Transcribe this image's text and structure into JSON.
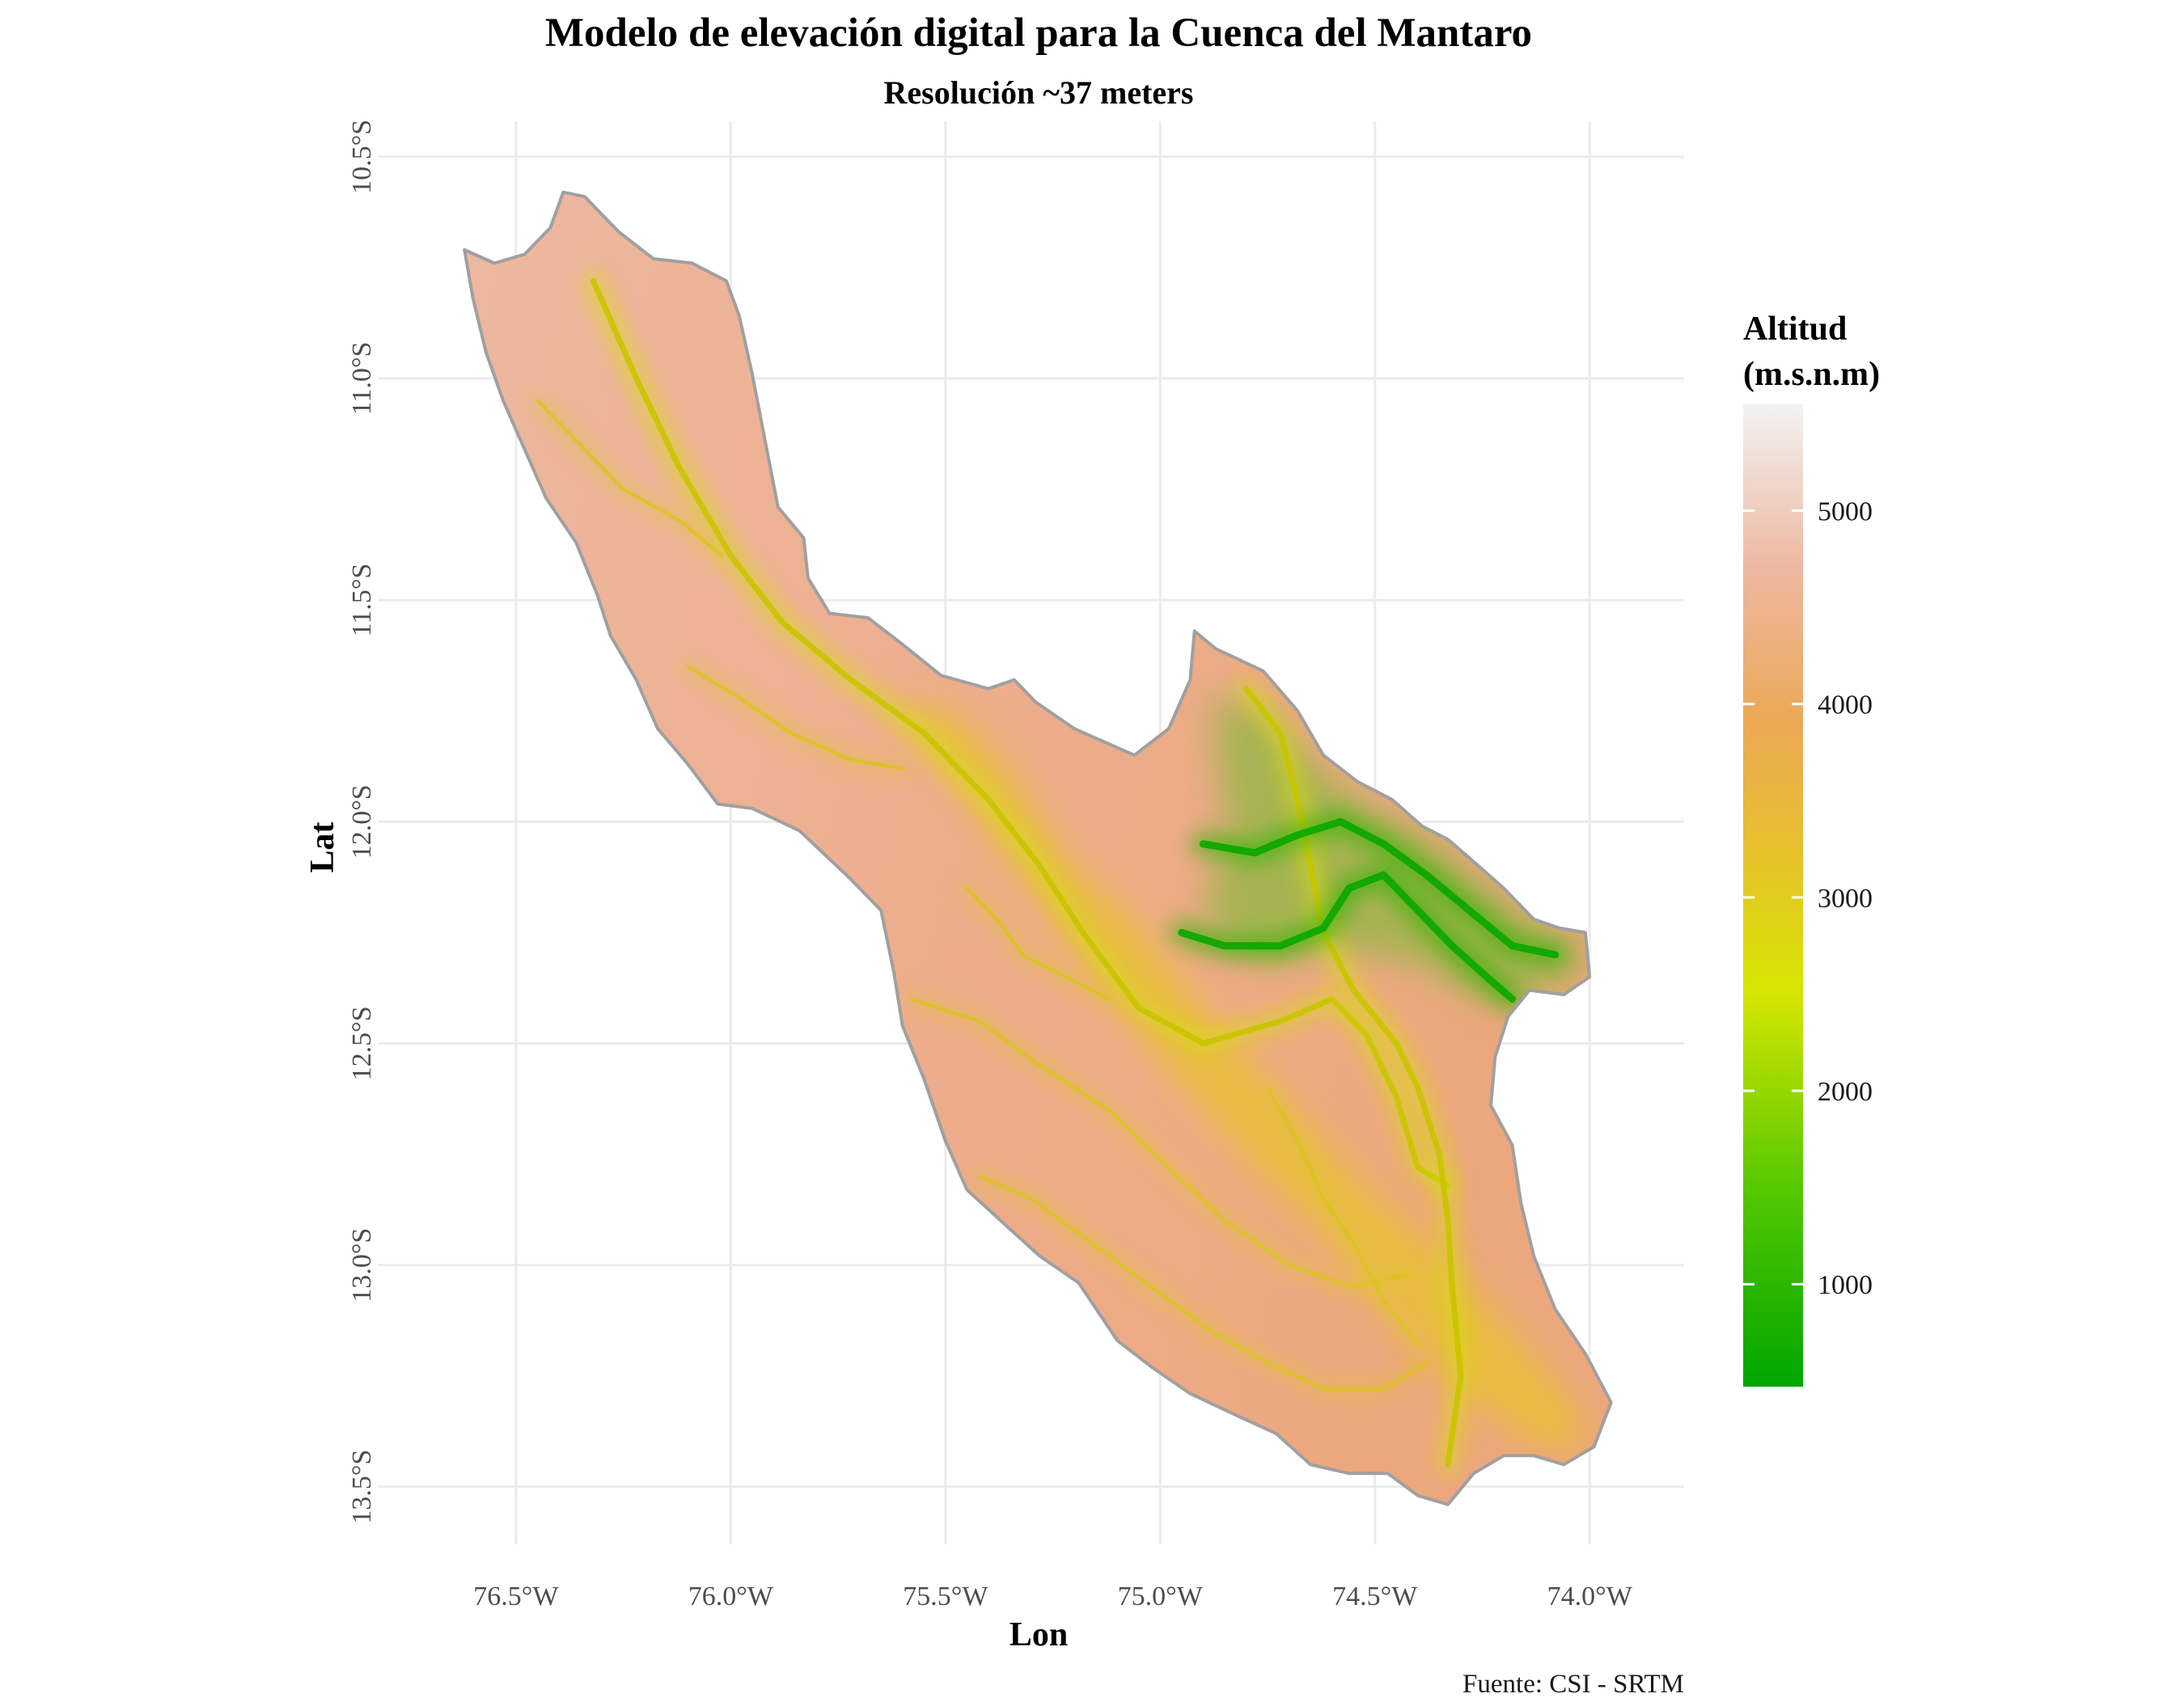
{
  "map": {
    "title": "Modelo de elevación digital para la Cuenca del Mantaro",
    "subtitle": "Resolución ~37 meters",
    "caption": "Fuente: CSI - SRTM",
    "x_axis": {
      "title": "Lon",
      "range": [
        -76.82,
        -73.78
      ],
      "ticks": [
        {
          "value": -76.5,
          "label": "76.5°W"
        },
        {
          "value": -76.0,
          "label": "76.0°W"
        },
        {
          "value": -75.5,
          "label": "75.5°W"
        },
        {
          "value": -75.0,
          "label": "75.0°W"
        },
        {
          "value": -74.5,
          "label": "74.5°W"
        },
        {
          "value": -74.0,
          "label": "74.0°W"
        }
      ]
    },
    "y_axis": {
      "title": "Lat",
      "range": [
        -13.63,
        -10.42
      ],
      "ticks": [
        {
          "value": -10.5,
          "label": "10.5°S"
        },
        {
          "value": -11.0,
          "label": "11.0°S"
        },
        {
          "value": -11.5,
          "label": "11.5°S"
        },
        {
          "value": -12.0,
          "label": "12.0°S"
        },
        {
          "value": -12.5,
          "label": "12.5°S"
        },
        {
          "value": -13.0,
          "label": "13.0°S"
        },
        {
          "value": -13.5,
          "label": "13.5°S"
        }
      ]
    },
    "grid": true,
    "legend": {
      "title_line1": "Altitud",
      "title_line2": "(m.s.n.m)",
      "placement": "right",
      "range": [
        470,
        5550
      ],
      "ticks": [
        {
          "value": 5000,
          "label": "5000"
        },
        {
          "value": 4000,
          "label": "4000"
        },
        {
          "value": 3000,
          "label": "3000"
        },
        {
          "value": 2000,
          "label": "2000"
        },
        {
          "value": 1000,
          "label": "1000"
        }
      ],
      "color_stops": [
        {
          "value": 470,
          "color": "#00a600"
        },
        {
          "value": 1500,
          "color": "#56c800"
        },
        {
          "value": 2500,
          "color": "#d6e600"
        },
        {
          "value": 3200,
          "color": "#e6c22a"
        },
        {
          "value": 3900,
          "color": "#eca855"
        },
        {
          "value": 4700,
          "color": "#edb8a1"
        },
        {
          "value": 5550,
          "color": "#f2f2f2"
        }
      ]
    },
    "colors": {
      "boundary": "#a0a0a0",
      "grid": "#ebebeb",
      "highland": "#edae8e",
      "valley": "#e6c22a",
      "lowland": "#00a600"
    },
    "basin_outline": [
      [
        -76.62,
        -10.71
      ],
      [
        -76.55,
        -10.74
      ],
      [
        -76.48,
        -10.72
      ],
      [
        -76.42,
        -10.66
      ],
      [
        -76.39,
        -10.58
      ],
      [
        -76.34,
        -10.59
      ],
      [
        -76.26,
        -10.67
      ],
      [
        -76.18,
        -10.73
      ],
      [
        -76.09,
        -10.74
      ],
      [
        -76.01,
        -10.78
      ],
      [
        -75.98,
        -10.86
      ],
      [
        -75.95,
        -10.99
      ],
      [
        -75.92,
        -11.14
      ],
      [
        -75.89,
        -11.29
      ],
      [
        -75.83,
        -11.36
      ],
      [
        -75.82,
        -11.45
      ],
      [
        -75.77,
        -11.53
      ],
      [
        -75.68,
        -11.54
      ],
      [
        -75.6,
        -11.6
      ],
      [
        -75.51,
        -11.67
      ],
      [
        -75.4,
        -11.7
      ],
      [
        -75.34,
        -11.68
      ],
      [
        -75.29,
        -11.73
      ],
      [
        -75.2,
        -11.79
      ],
      [
        -75.06,
        -11.85
      ],
      [
        -74.98,
        -11.79
      ],
      [
        -74.93,
        -11.68
      ],
      [
        -74.92,
        -11.57
      ],
      [
        -74.87,
        -11.61
      ],
      [
        -74.76,
        -11.66
      ],
      [
        -74.68,
        -11.75
      ],
      [
        -74.62,
        -11.85
      ],
      [
        -74.54,
        -11.91
      ],
      [
        -74.46,
        -11.95
      ],
      [
        -74.39,
        -12.01
      ],
      [
        -74.33,
        -12.04
      ],
      [
        -74.27,
        -12.09
      ],
      [
        -74.2,
        -12.15
      ],
      [
        -74.13,
        -12.22
      ],
      [
        -74.07,
        -12.24
      ],
      [
        -74.01,
        -12.25
      ],
      [
        -74.0,
        -12.35
      ],
      [
        -74.06,
        -12.39
      ],
      [
        -74.14,
        -12.38
      ],
      [
        -74.19,
        -12.44
      ],
      [
        -74.22,
        -12.53
      ],
      [
        -74.23,
        -12.64
      ],
      [
        -74.18,
        -12.73
      ],
      [
        -74.16,
        -12.86
      ],
      [
        -74.13,
        -12.98
      ],
      [
        -74.08,
        -13.1
      ],
      [
        -74.01,
        -13.2
      ],
      [
        -73.95,
        -13.31
      ],
      [
        -73.99,
        -13.41
      ],
      [
        -74.06,
        -13.45
      ],
      [
        -74.13,
        -13.43
      ],
      [
        -74.2,
        -13.43
      ],
      [
        -74.27,
        -13.47
      ],
      [
        -74.33,
        -13.54
      ],
      [
        -74.4,
        -13.52
      ],
      [
        -74.47,
        -13.47
      ],
      [
        -74.56,
        -13.47
      ],
      [
        -74.65,
        -13.45
      ],
      [
        -74.73,
        -13.38
      ],
      [
        -74.82,
        -13.34
      ],
      [
        -74.93,
        -13.29
      ],
      [
        -75.02,
        -13.23
      ],
      [
        -75.1,
        -13.17
      ],
      [
        -75.19,
        -13.04
      ],
      [
        -75.28,
        -12.98
      ],
      [
        -75.36,
        -12.91
      ],
      [
        -75.45,
        -12.83
      ],
      [
        -75.5,
        -12.72
      ],
      [
        -75.55,
        -12.58
      ],
      [
        -75.6,
        -12.46
      ],
      [
        -75.62,
        -12.34
      ],
      [
        -75.65,
        -12.2
      ],
      [
        -75.72,
        -12.13
      ],
      [
        -75.84,
        -12.02
      ],
      [
        -75.95,
        -11.97
      ],
      [
        -76.03,
        -11.96
      ],
      [
        -76.1,
        -11.87
      ],
      [
        -76.17,
        -11.79
      ],
      [
        -76.22,
        -11.68
      ],
      [
        -76.28,
        -11.58
      ],
      [
        -76.31,
        -11.49
      ],
      [
        -76.36,
        -11.37
      ],
      [
        -76.43,
        -11.27
      ],
      [
        -76.48,
        -11.16
      ],
      [
        -76.53,
        -11.05
      ],
      [
        -76.57,
        -10.94
      ],
      [
        -76.6,
        -10.82
      ]
    ],
    "valley_zone": [
      [
        -75.62,
        -11.72
      ],
      [
        -75.48,
        -11.75
      ],
      [
        -75.35,
        -11.88
      ],
      [
        -75.22,
        -12.08
      ],
      [
        -75.06,
        -12.22
      ],
      [
        -74.9,
        -12.42
      ],
      [
        -74.72,
        -12.62
      ],
      [
        -74.52,
        -12.82
      ],
      [
        -74.32,
        -13.0
      ],
      [
        -74.18,
        -13.15
      ],
      [
        -74.05,
        -13.3
      ],
      [
        -74.0,
        -13.4
      ],
      [
        -74.1,
        -13.42
      ],
      [
        -74.28,
        -13.3
      ],
      [
        -74.45,
        -13.12
      ],
      [
        -74.6,
        -12.95
      ],
      [
        -74.8,
        -12.76
      ],
      [
        -74.98,
        -12.56
      ],
      [
        -75.14,
        -12.36
      ],
      [
        -75.3,
        -12.15
      ],
      [
        -75.45,
        -11.95
      ],
      [
        -75.58,
        -11.8
      ]
    ],
    "green_zone": [
      [
        -74.88,
        -11.72
      ],
      [
        -74.76,
        -11.74
      ],
      [
        -74.64,
        -11.87
      ],
      [
        -74.52,
        -11.96
      ],
      [
        -74.38,
        -12.03
      ],
      [
        -74.25,
        -12.13
      ],
      [
        -74.12,
        -12.23
      ],
      [
        -74.02,
        -12.27
      ],
      [
        -74.01,
        -12.35
      ],
      [
        -74.12,
        -12.38
      ],
      [
        -74.22,
        -12.42
      ],
      [
        -74.3,
        -12.38
      ],
      [
        -74.38,
        -12.33
      ],
      [
        -74.5,
        -12.3
      ],
      [
        -74.62,
        -12.29
      ],
      [
        -74.76,
        -12.32
      ],
      [
        -74.86,
        -12.28
      ],
      [
        -74.9,
        -12.16
      ],
      [
        -74.84,
        -12.05
      ],
      [
        -74.86,
        -11.92
      ]
    ],
    "rivers": [
      {
        "name": "",
        "kind": "main",
        "coords": [
          [
            -76.32,
            -10.78
          ],
          [
            -76.22,
            -11.0
          ],
          [
            -76.12,
            -11.2
          ],
          [
            -76.0,
            -11.4
          ],
          [
            -75.88,
            -11.55
          ],
          [
            -75.72,
            -11.68
          ],
          [
            -75.55,
            -11.8
          ],
          [
            -75.4,
            -11.95
          ],
          [
            -75.28,
            -12.1
          ],
          [
            -75.18,
            -12.25
          ],
          [
            -75.05,
            -12.42
          ],
          [
            -74.9,
            -12.5
          ],
          [
            -74.72,
            -12.45
          ],
          [
            -74.6,
            -12.4
          ],
          [
            -74.52,
            -12.48
          ],
          [
            -74.45,
            -12.62
          ],
          [
            -74.4,
            -12.78
          ],
          [
            -74.33,
            -12.82
          ]
        ]
      },
      {
        "name": "",
        "kind": "main",
        "coords": [
          [
            -74.33,
            -13.45
          ],
          [
            -74.3,
            -13.25
          ],
          [
            -74.32,
            -13.05
          ],
          [
            -74.33,
            -12.9
          ],
          [
            -74.35,
            -12.75
          ],
          [
            -74.4,
            -12.6
          ],
          [
            -74.45,
            -12.5
          ],
          [
            -74.55,
            -12.38
          ],
          [
            -74.62,
            -12.25
          ],
          [
            -74.65,
            -12.1
          ],
          [
            -74.68,
            -11.95
          ],
          [
            -74.72,
            -11.8
          ],
          [
            -74.8,
            -11.7
          ]
        ]
      },
      {
        "name": "",
        "kind": "green",
        "coords": [
          [
            -74.9,
            -12.05
          ],
          [
            -74.78,
            -12.07
          ],
          [
            -74.68,
            -12.03
          ],
          [
            -74.58,
            -12.0
          ],
          [
            -74.48,
            -12.05
          ],
          [
            -74.38,
            -12.12
          ],
          [
            -74.28,
            -12.2
          ],
          [
            -74.18,
            -12.28
          ],
          [
            -74.08,
            -12.3
          ]
        ]
      },
      {
        "name": "",
        "kind": "green",
        "coords": [
          [
            -74.95,
            -12.25
          ],
          [
            -74.85,
            -12.28
          ],
          [
            -74.72,
            -12.28
          ],
          [
            -74.62,
            -12.24
          ],
          [
            -74.56,
            -12.15
          ],
          [
            -74.48,
            -12.12
          ],
          [
            -74.4,
            -12.2
          ],
          [
            -74.32,
            -12.28
          ],
          [
            -74.24,
            -12.35
          ],
          [
            -74.18,
            -12.4
          ]
        ]
      },
      {
        "name": "",
        "kind": "trib",
        "coords": [
          [
            -75.58,
            -12.4
          ],
          [
            -75.42,
            -12.45
          ],
          [
            -75.28,
            -12.55
          ],
          [
            -75.12,
            -12.65
          ],
          [
            -74.98,
            -12.78
          ],
          [
            -74.85,
            -12.9
          ],
          [
            -74.7,
            -13.0
          ],
          [
            -74.55,
            -13.05
          ],
          [
            -74.42,
            -13.02
          ]
        ]
      },
      {
        "name": "",
        "kind": "trib",
        "coords": [
          [
            -75.42,
            -12.8
          ],
          [
            -75.3,
            -12.85
          ],
          [
            -75.16,
            -12.95
          ],
          [
            -75.02,
            -13.05
          ],
          [
            -74.88,
            -13.15
          ],
          [
            -74.75,
            -13.22
          ],
          [
            -74.62,
            -13.28
          ],
          [
            -74.48,
            -13.28
          ],
          [
            -74.38,
            -13.22
          ]
        ]
      },
      {
        "name": "",
        "kind": "trib",
        "coords": [
          [
            -74.75,
            -12.6
          ],
          [
            -74.68,
            -12.72
          ],
          [
            -74.62,
            -12.85
          ],
          [
            -74.55,
            -12.95
          ],
          [
            -74.48,
            -13.08
          ],
          [
            -74.4,
            -13.18
          ]
        ]
      },
      {
        "name": "",
        "kind": "trib",
        "coords": [
          [
            -76.45,
            -11.05
          ],
          [
            -76.35,
            -11.15
          ],
          [
            -76.25,
            -11.25
          ],
          [
            -76.12,
            -11.32
          ],
          [
            -76.02,
            -11.4
          ]
        ]
      },
      {
        "name": "",
        "kind": "trib",
        "coords": [
          [
            -76.1,
            -11.65
          ],
          [
            -75.98,
            -11.72
          ],
          [
            -75.86,
            -11.8
          ],
          [
            -75.72,
            -11.86
          ],
          [
            -75.6,
            -11.88
          ]
        ]
      },
      {
        "name": "",
        "kind": "trib",
        "coords": [
          [
            -75.45,
            -12.15
          ],
          [
            -75.38,
            -12.22
          ],
          [
            -75.32,
            -12.3
          ],
          [
            -75.22,
            -12.35
          ],
          [
            -75.12,
            -12.4
          ]
        ]
      }
    ]
  }
}
